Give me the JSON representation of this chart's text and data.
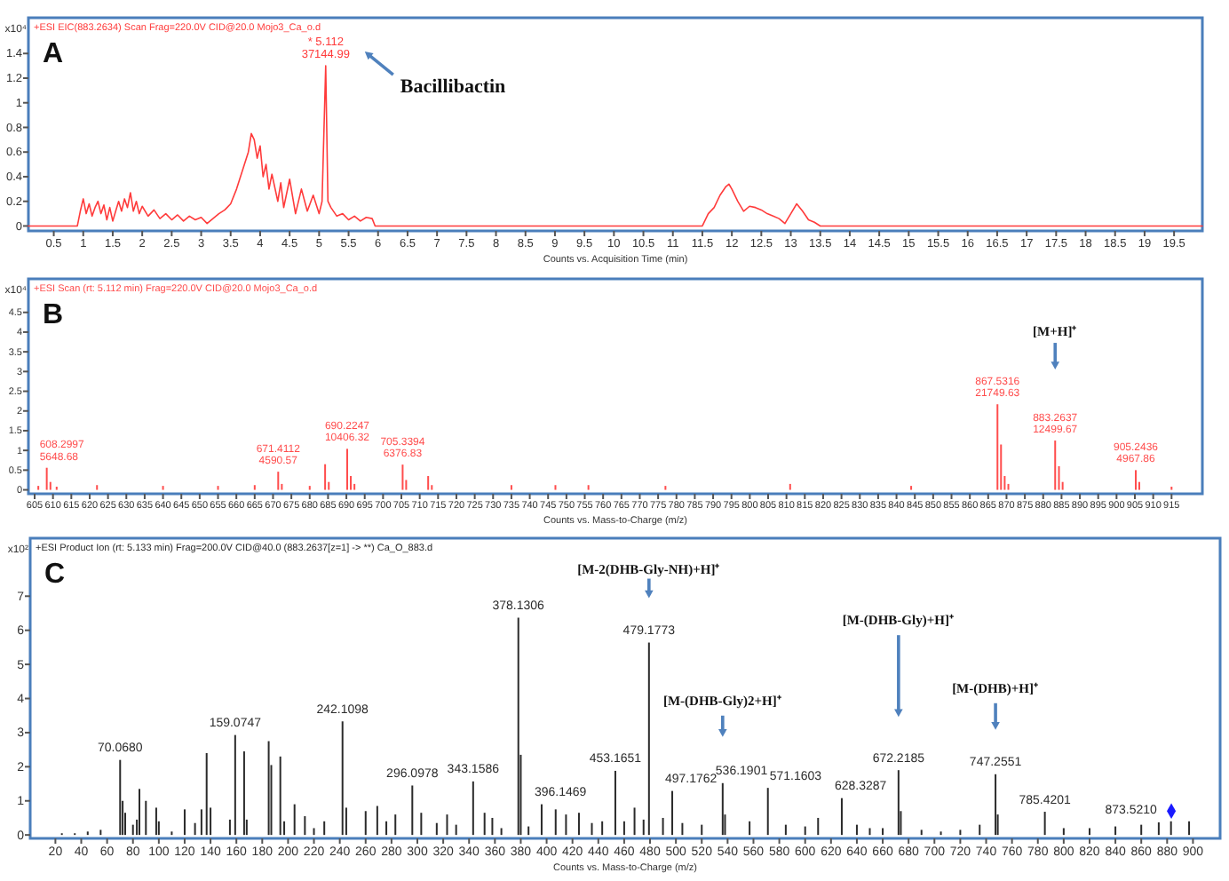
{
  "chart_data": [
    {
      "type": "line",
      "title": "A",
      "subtitle": "+ESI EIC(883.2634) Scan Frag=220.0V CID@20.0 Mojo3_Ca_o.d",
      "xlabel": "Counts vs. Acquisition Time (min)",
      "ylabel": "x10⁴",
      "xlim": [
        0.07,
        19.98
      ],
      "ylim": [
        -0.04,
        1.69
      ],
      "xticks": [
        0.5,
        1,
        1.5,
        2,
        2.5,
        3,
        3.5,
        4,
        4.5,
        5,
        5.5,
        6,
        6.5,
        7,
        7.5,
        8,
        8.5,
        9,
        9.5,
        10,
        10.5,
        11,
        11.5,
        12,
        12.5,
        13,
        13.5,
        14,
        14.5,
        15,
        15.5,
        16,
        16.5,
        17,
        17.5,
        18,
        18.5,
        19,
        19.5
      ],
      "yticks": [
        0,
        0.2,
        0.4,
        0.6,
        0.8,
        1,
        1.2,
        1.4
      ],
      "annotations": [
        "Bacillibactin",
        {
          "text": "* 5.112\n37144.99",
          "x": 5.112,
          "y": 1.3
        }
      ],
      "series": [
        {
          "color": "#ff3b3b",
          "x": [
            0.07,
            0.9,
            0.95,
            1.0,
            1.05,
            1.1,
            1.15,
            1.2,
            1.25,
            1.3,
            1.35,
            1.4,
            1.45,
            1.5,
            1.55,
            1.6,
            1.65,
            1.7,
            1.75,
            1.8,
            1.85,
            1.9,
            1.95,
            2.0,
            2.1,
            2.2,
            2.3,
            2.4,
            2.5,
            2.6,
            2.7,
            2.8,
            2.9,
            3.0,
            3.1,
            3.2,
            3.3,
            3.4,
            3.5,
            3.6,
            3.7,
            3.8,
            3.85,
            3.9,
            3.95,
            4.0,
            4.05,
            4.1,
            4.15,
            4.2,
            4.3,
            4.35,
            4.4,
            4.5,
            4.6,
            4.7,
            4.8,
            4.9,
            5.0,
            5.05,
            5.112,
            5.15,
            5.2,
            5.3,
            5.4,
            5.5,
            5.6,
            5.7,
            5.8,
            5.9,
            5.95,
            11.5,
            11.6,
            11.7,
            11.8,
            11.9,
            11.95,
            12.0,
            12.1,
            12.2,
            12.3,
            12.4,
            12.5,
            12.6,
            12.7,
            12.8,
            12.9,
            13.0,
            13.1,
            13.2,
            13.3,
            13.4,
            13.5,
            19.98
          ],
          "values": [
            0,
            0,
            0.12,
            0.22,
            0.1,
            0.18,
            0.08,
            0.15,
            0.2,
            0.1,
            0.17,
            0.05,
            0.15,
            0.04,
            0.12,
            0.2,
            0.12,
            0.22,
            0.15,
            0.27,
            0.12,
            0.2,
            0.1,
            0.16,
            0.08,
            0.13,
            0.06,
            0.1,
            0.05,
            0.09,
            0.04,
            0.08,
            0.05,
            0.07,
            0.02,
            0.06,
            0.1,
            0.13,
            0.18,
            0.3,
            0.45,
            0.6,
            0.75,
            0.7,
            0.55,
            0.65,
            0.4,
            0.5,
            0.3,
            0.42,
            0.2,
            0.35,
            0.15,
            0.38,
            0.1,
            0.3,
            0.12,
            0.25,
            0.1,
            0.2,
            1.3,
            0.2,
            0.15,
            0.08,
            0.1,
            0.05,
            0.08,
            0.04,
            0.07,
            0.06,
            0,
            0,
            0.1,
            0.15,
            0.25,
            0.32,
            0.34,
            0.3,
            0.2,
            0.12,
            0.16,
            0.15,
            0.13,
            0.1,
            0.08,
            0.06,
            0.02,
            0.1,
            0.18,
            0.12,
            0.05,
            0.03,
            0,
            0
          ]
        }
      ]
    },
    {
      "type": "bar",
      "title": "B",
      "subtitle": "+ESI Scan (rt: 5.112 min) Frag=220.0V CID@20.0 Mojo3_Ca_o.d",
      "xlabel": "Counts vs. Mass-to-Charge (m/z)",
      "ylabel": "x10⁴",
      "xlim": [
        603.3,
        923.4
      ],
      "ylim": [
        -0.1,
        5.35
      ],
      "xticks": [
        605,
        610,
        615,
        620,
        625,
        630,
        635,
        640,
        645,
        650,
        655,
        660,
        665,
        670,
        675,
        680,
        685,
        690,
        695,
        700,
        705,
        710,
        715,
        720,
        725,
        730,
        735,
        740,
        745,
        750,
        755,
        760,
        765,
        770,
        775,
        780,
        785,
        790,
        795,
        800,
        805,
        810,
        815,
        820,
        825,
        830,
        835,
        840,
        845,
        850,
        855,
        860,
        865,
        870,
        875,
        880,
        885,
        890,
        895,
        900,
        905,
        910,
        915
      ],
      "yticks": [
        0,
        0.5,
        1,
        1.5,
        2,
        2.5,
        3,
        3.5,
        4,
        4.5
      ],
      "annotations": [
        "[M+H]⁺",
        {
          "text": "608.2997\n5648.68",
          "x": 608.2997,
          "y": 0.56
        },
        {
          "text": "671.4112\n4590.57",
          "x": 671.4112,
          "y": 0.46
        },
        {
          "text": "690.2247\n10406.32",
          "x": 690.2247,
          "y": 1.04
        },
        {
          "text": "705.3394\n6376.83",
          "x": 705.3394,
          "y": 0.64
        },
        {
          "text": "867.5316\n21749.63",
          "x": 867.5316,
          "y": 2.17
        },
        {
          "text": "883.2637\n12499.67",
          "x": 883.2637,
          "y": 1.25
        },
        {
          "text": "905.2436\n4967.86",
          "x": 905.2436,
          "y": 0.5
        }
      ],
      "series": [
        {
          "color": "#ff4d4d",
          "x": [
            606,
            608.2997,
            609.3,
            611,
            622,
            640,
            655,
            665,
            671.4112,
            672.4,
            680,
            684.2,
            685.2,
            690.2247,
            691.2,
            692.2,
            705.3394,
            706.3,
            712.3,
            713.3,
            735,
            747,
            756,
            777,
            811,
            844,
            867.5316,
            868.5,
            869.5,
            870.5,
            883.2637,
            884.3,
            885.3,
            905.2436,
            906.2,
            915
          ],
          "values": [
            0.1,
            0.56,
            0.2,
            0.08,
            0.12,
            0.1,
            0.1,
            0.12,
            0.46,
            0.15,
            0.1,
            0.65,
            0.2,
            1.04,
            0.35,
            0.15,
            0.64,
            0.25,
            0.35,
            0.12,
            0.12,
            0.12,
            0.12,
            0.1,
            0.15,
            0.1,
            2.17,
            1.15,
            0.35,
            0.15,
            1.25,
            0.6,
            0.2,
            0.5,
            0.2,
            0.08
          ]
        }
      ]
    },
    {
      "type": "bar",
      "title": "C",
      "subtitle": "+ESI Product Ion (rt: 5.133 min) Frag=200.0V CID@40.0 (883.2637[z=1] -> **) Ca_O_883.d",
      "xlabel": "Counts vs. Mass-to-Charge (m/z)",
      "ylabel": "x10²",
      "xlim": [
        0.5,
        921
      ],
      "ylim": [
        -0.1,
        8.7
      ],
      "xticks": [
        20,
        40,
        60,
        80,
        100,
        120,
        140,
        160,
        180,
        200,
        220,
        240,
        260,
        280,
        300,
        320,
        340,
        360,
        380,
        400,
        420,
        440,
        460,
        480,
        500,
        520,
        540,
        560,
        580,
        600,
        620,
        640,
        660,
        680,
        700,
        720,
        740,
        760,
        780,
        800,
        820,
        840,
        860,
        880,
        900
      ],
      "yticks": [
        0,
        1,
        2,
        3,
        4,
        5,
        6,
        7
      ],
      "annotations": [
        "[M-2(DHB-Gly-NH)+H]⁺",
        "[M-(DHB-Gly)2+H]⁺",
        "[M-(DHB-Gly)+H]⁺",
        "[M-(DHB)+H]⁺",
        {
          "text": "70.0680",
          "x": 70.068,
          "y": 2.2
        },
        {
          "text": "159.0747",
          "x": 159.0747,
          "y": 2.93
        },
        {
          "text": "242.1098",
          "x": 242.1098,
          "y": 3.33
        },
        {
          "text": "296.0978",
          "x": 296.0978,
          "y": 1.45
        },
        {
          "text": "343.1586",
          "x": 343.1586,
          "y": 1.57
        },
        {
          "text": "378.1306",
          "x": 378.1306,
          "y": 6.37
        },
        {
          "text": "396.1469",
          "x": 396.1469,
          "y": 0.9
        },
        {
          "text": "453.1651",
          "x": 453.1651,
          "y": 1.88
        },
        {
          "text": "479.1773",
          "x": 479.1773,
          "y": 5.64
        },
        {
          "text": "497.1762",
          "x": 497.1762,
          "y": 1.29
        },
        {
          "text": "536.1901",
          "x": 536.1901,
          "y": 1.52
        },
        {
          "text": "571.1603",
          "x": 571.1603,
          "y": 1.38
        },
        {
          "text": "628.3287",
          "x": 628.3287,
          "y": 1.08
        },
        {
          "text": "672.2185",
          "x": 672.2185,
          "y": 1.9
        },
        {
          "text": "747.2551",
          "x": 747.2551,
          "y": 1.78
        },
        {
          "text": "785.4201",
          "x": 785.4201,
          "y": 0.68
        },
        {
          "text": "873.5210",
          "x": 873.521,
          "y": 0.37
        }
      ],
      "series": [
        {
          "color": "#2b2b2b",
          "x": [
            25,
            35,
            45,
            55,
            70.068,
            72,
            74,
            80,
            83,
            85,
            90,
            98,
            100,
            110,
            120,
            128,
            133,
            137,
            140,
            155,
            159.0747,
            166,
            168,
            185,
            187,
            194,
            197,
            205,
            213,
            220,
            228,
            242.1098,
            245,
            260,
            269,
            276,
            283,
            296.0978,
            303,
            315,
            323,
            330,
            343.1586,
            352,
            358,
            365,
            378.1306,
            380,
            386,
            396.1469,
            407,
            415,
            425,
            435,
            443,
            453.1651,
            460,
            468,
            475,
            479.1773,
            490,
            497.1762,
            505,
            520,
            536.1901,
            538,
            557,
            571.1603,
            585,
            600,
            610,
            628.3287,
            640,
            650,
            660,
            672.2185,
            674,
            690,
            705,
            720,
            735,
            747.2551,
            749,
            785.4201,
            800,
            820,
            840,
            860,
            873.521,
            883,
            897
          ],
          "values": [
            0.05,
            0.05,
            0.1,
            0.15,
            2.2,
            1.0,
            0.65,
            0.3,
            0.45,
            1.35,
            1.0,
            0.8,
            0.4,
            0.1,
            0.75,
            0.35,
            0.75,
            2.4,
            0.8,
            0.45,
            2.93,
            2.45,
            0.45,
            2.75,
            2.05,
            2.3,
            0.4,
            0.9,
            0.55,
            0.2,
            0.4,
            3.33,
            0.8,
            0.7,
            0.85,
            0.4,
            0.6,
            1.45,
            0.65,
            0.35,
            0.6,
            0.3,
            1.57,
            0.65,
            0.5,
            0.2,
            6.37,
            2.35,
            0.25,
            0.9,
            0.75,
            0.6,
            0.65,
            0.35,
            0.4,
            1.88,
            0.4,
            0.8,
            0.45,
            5.64,
            0.5,
            1.29,
            0.35,
            0.3,
            1.52,
            0.6,
            0.4,
            1.38,
            0.3,
            0.25,
            0.5,
            1.08,
            0.3,
            0.2,
            0.2,
            1.9,
            0.7,
            0.15,
            0.1,
            0.15,
            0.3,
            1.78,
            0.6,
            0.68,
            0.2,
            0.2,
            0.25,
            0.3,
            0.37,
            0.4,
            0.4
          ]
        },
        {
          "type": "scatter",
          "color": "#1a1aff",
          "marker": "diamond",
          "x": [
            883.2637
          ],
          "values": [
            0.7
          ]
        }
      ]
    }
  ]
}
